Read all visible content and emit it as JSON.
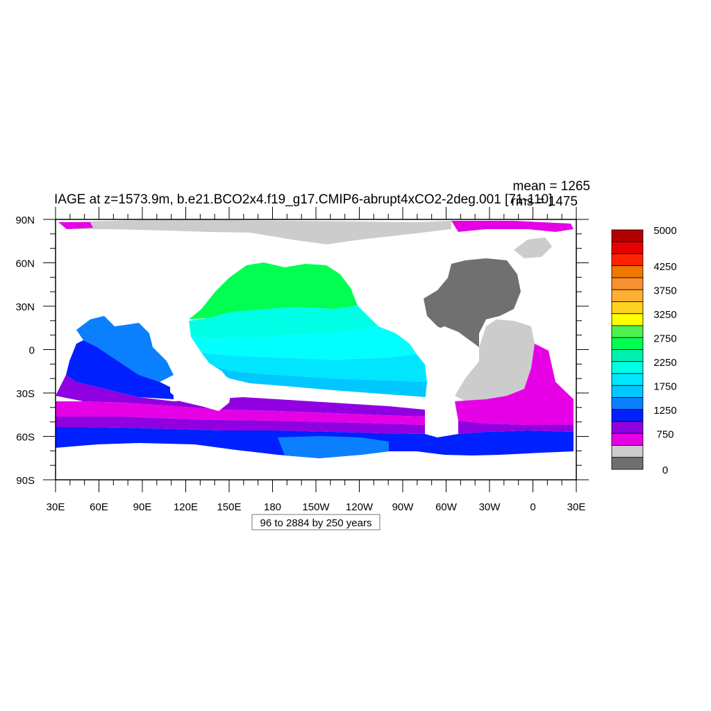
{
  "title": "IAGE at z=1573.9m, b.e21.BCO2x4.f19_g17.CMIP6-abrupt4xCO2-2deg.001 [71-110]",
  "stats": {
    "mean": "mean = 1265",
    "rms": "rms = 1475"
  },
  "contour_note": "96 to 2884 by 250 years",
  "lat_labels": [
    "90N",
    "60N",
    "30N",
    "0",
    "30S",
    "60S",
    "90S"
  ],
  "lon_labels": [
    "30E",
    "60E",
    "90E",
    "120E",
    "150E",
    "180",
    "150W",
    "120W",
    "90W",
    "60W",
    "30W",
    "0",
    "30E"
  ],
  "colorbar": {
    "labels": [
      "5000",
      "4250",
      "3750",
      "3250",
      "2750",
      "2250",
      "1750",
      "1250",
      "750",
      "0"
    ],
    "colors": [
      "#b20000",
      "#e60000",
      "#ff2200",
      "#f07800",
      "#f79030",
      "#ffb030",
      "#ffd21e",
      "#ffff00",
      "#50f050",
      "#00ff50",
      "#00f0b0",
      "#00ffe6",
      "#00e6ff",
      "#00c8ff",
      "#0a80ff",
      "#0020ff",
      "#9000e0",
      "#e600e6",
      "#cccccc",
      "#707070"
    ]
  },
  "map_colors": {
    "land_gray": "#cccccc",
    "atlantic_dark": "#707070",
    "magenta": "#e600e6",
    "purple": "#9000e0",
    "blue": "#0020ff",
    "mid_blue": "#0a80ff",
    "light_blue": "#00c8ff",
    "cyan": "#00e6ff",
    "aqua": "#00ffe6",
    "teal": "#00f0b0",
    "green": "#00ff50",
    "yellow_green": "#50f050"
  }
}
